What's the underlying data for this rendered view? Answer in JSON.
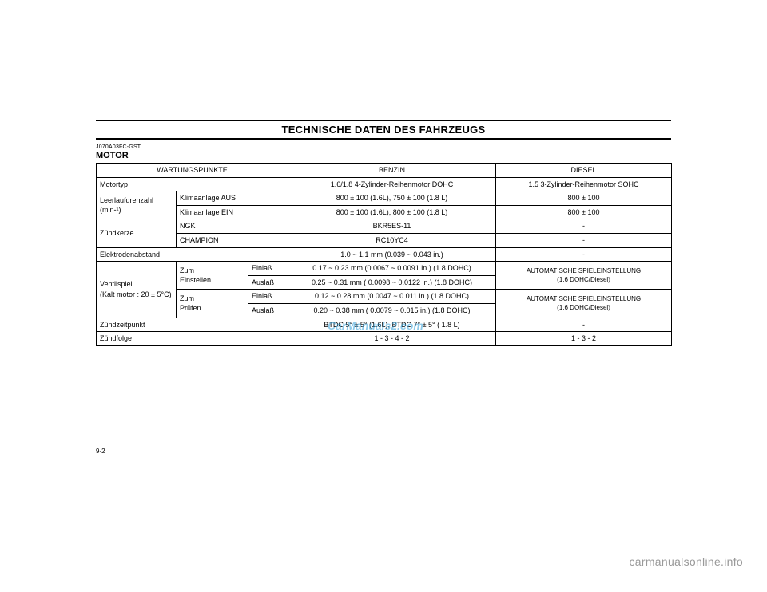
{
  "page": {
    "header_title": "TECHNISCHE DATEN DES FAHRZEUGS",
    "doc_code": "J070A03FC-GST",
    "section_title": "MOTOR",
    "page_number": "9-2",
    "footer": "carmanualsonline.info",
    "watermark": "CarManuals2.com"
  },
  "table": {
    "columns": {
      "wartungspunkte": "WARTUNGSPUNKTE",
      "benzin": "BENZIN",
      "diesel": "DIESEL"
    },
    "rows": {
      "motortyp": {
        "label": "Motortyp",
        "benzin": "1.6/1.8 4-Zylinder-Reihenmotor DOHC",
        "diesel": "1.5 3-Zylinder-Reihenmotor SOHC"
      },
      "leerlauf": {
        "label1": "Leerlaufdrehzahl",
        "label2": "(min-¹)",
        "aus_label": "Klimaanlage AUS",
        "aus_benzin": "800 ± 100 (1.6L), 750 ± 100 (1.8 L)",
        "aus_diesel": "800 ± 100",
        "ein_label": "Klimaanlage EIN",
        "ein_benzin": "800 ± 100 (1.6L), 800 ± 100 (1.8 L)",
        "ein_diesel": "800 ± 100"
      },
      "zuendkerze": {
        "label": "Zündkerze",
        "ngk_label": "NGK",
        "ngk_benzin": "BKR5ES-11",
        "ngk_diesel": "-",
        "champ_label": "CHAMPION",
        "champ_benzin": "RC10YC4",
        "champ_diesel": "-"
      },
      "elektroden": {
        "label": "Elektrodenabstand",
        "benzin": "1.0 ~ 1.1 mm (0.039 ~ 0.043 in.)",
        "diesel": "-"
      },
      "ventilspiel": {
        "label1": "Ventilspiel",
        "label2": "(Kalt motor : 20 ± 5°C)",
        "einstellen_label": "Zum Einstellen",
        "pruefen_label": "Zum Prüfen",
        "einlass_label": "Einlaß",
        "auslass_label": "Auslaß",
        "einst_einlass": "0.17 ~ 0.23 mm (0.0067 ~ 0.0091 in.) (1.8 DOHC)",
        "einst_auslass": "0.25 ~ 0.31 mm ( 0.0098 ~ 0.0122 in.) (1.8 DOHC)",
        "prue_einlass": "0.12 ~ 0.28 mm (0.0047 ~ 0.011 in.) (1.8 DOHC)",
        "prue_auslass": "0.20 ~ 0.38 mm ( 0.0079 ~ 0.015 in.) (1.8 DOHC)",
        "diesel_auto1_line1": "AUTOMATISCHE SPIELEINSTELLUNG",
        "diesel_auto1_line2": "(1.6 DOHC/Diesel)",
        "diesel_auto2_line1": "AUTOMATISCHE SPIELEINSTELLUNG",
        "diesel_auto2_line2": "(1.6 DOHC/Diesel)"
      },
      "zuendzeitpunkt": {
        "label": "Zündzeitpunkt",
        "benzin": "BTDC 5° ± 5° (1.6L), BTDC 7° ± 5° ( 1.8 L)",
        "diesel": "-"
      },
      "zuendfolge": {
        "label": "Zündfolge",
        "benzin": "1 - 3 - 4 - 2",
        "diesel": "1 - 3 - 2"
      }
    }
  }
}
